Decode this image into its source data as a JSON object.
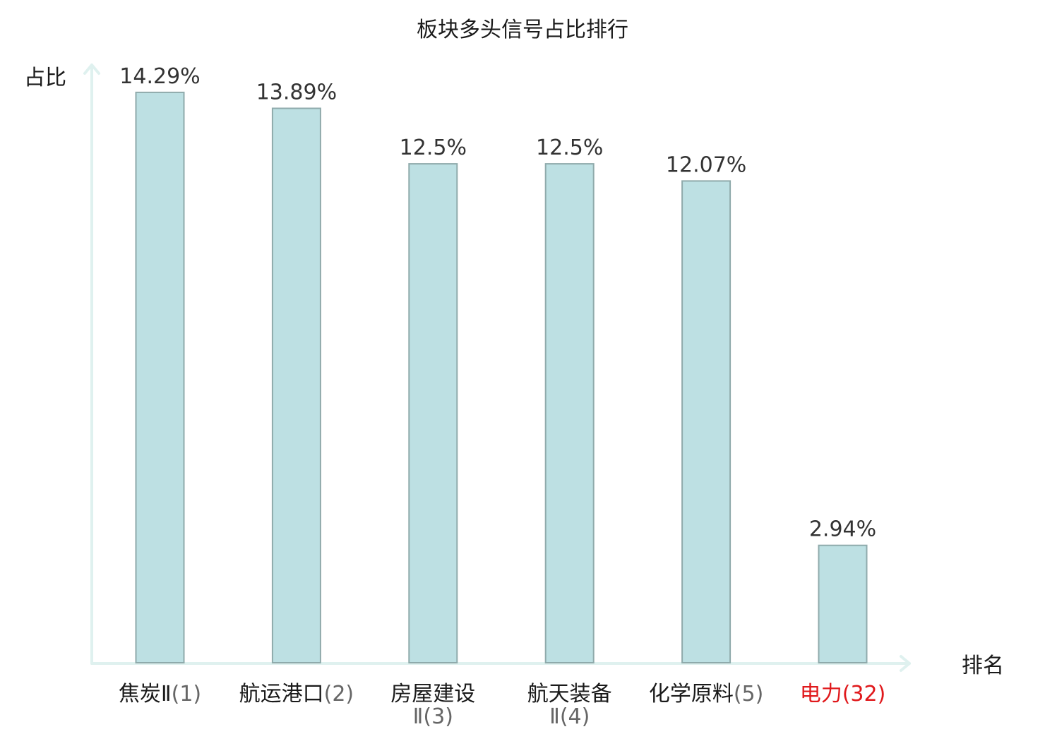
{
  "chart_data": {
    "type": "bar",
    "title": "板块多头信号占比排行",
    "ylabel": "占比",
    "xlabel": "排名",
    "categories": [
      {
        "name": "焦炭Ⅱ",
        "rank": "(1)",
        "lines": [
          "焦炭Ⅱ",
          "(1)"
        ],
        "wrap": false
      },
      {
        "name": "航运港口",
        "rank": "(2)",
        "lines": [
          "航运港口",
          "(2)"
        ],
        "wrap": false
      },
      {
        "name": "房屋建设",
        "rank": "Ⅱ(3)",
        "lines": [
          "房屋建设",
          "Ⅱ(3)"
        ],
        "wrap": true
      },
      {
        "name": "航天装备",
        "rank": "Ⅱ(4)",
        "lines": [
          "航天装备",
          "Ⅱ(4)"
        ],
        "wrap": true
      },
      {
        "name": "化学原料",
        "rank": "(5)",
        "lines": [
          "化学原料",
          "(5)"
        ],
        "wrap": false
      },
      {
        "name": "电力",
        "rank": "(32)",
        "lines": [
          "电力",
          "(32)"
        ],
        "wrap": false,
        "highlight": true
      }
    ],
    "values": [
      14.29,
      13.89,
      12.5,
      12.5,
      12.07,
      2.94
    ],
    "value_labels": [
      "14.29%",
      "13.89%",
      "12.5%",
      "12.5%",
      "12.07%",
      "2.94%"
    ],
    "ylim": [
      0,
      15
    ],
    "grid": false,
    "legend": "none"
  },
  "colors": {
    "bar_fill": "#bde0e3",
    "bar_stroke": "#8faaab",
    "axis": "#dff1ef",
    "highlight": "#e0191c",
    "text": "#1a1a1a",
    "rank_text": "#666666"
  }
}
